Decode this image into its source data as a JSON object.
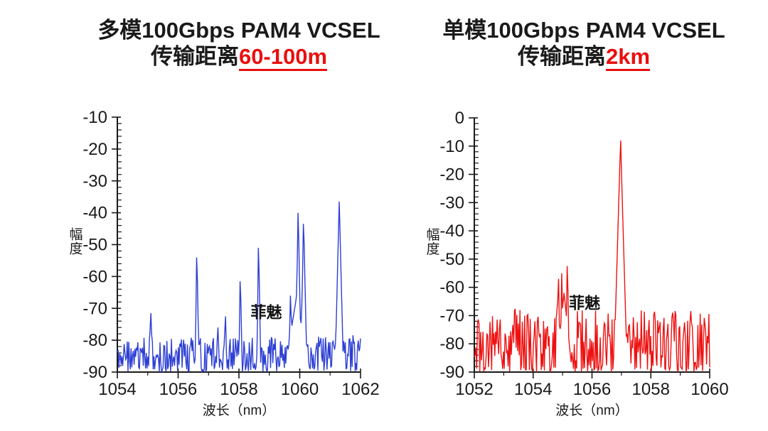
{
  "page": {
    "background": "#ffffff",
    "text_color": "#1a1a1a",
    "axis_color": "#1a1a1a"
  },
  "chart_data": [
    {
      "type": "line",
      "id": "multimode-vcsel-spectrum",
      "title": "多模100Gbps PAM4 VCSEL",
      "subtitle_prefix": "传输距离",
      "subtitle_highlight": "60-100m",
      "highlight_color": "#e8100e",
      "line_color": "#2d3fd3",
      "xlabel": "波长（nm）",
      "ylabel": "幅度",
      "xlim": [
        1054,
        1062
      ],
      "ylim": [
        -90,
        -10
      ],
      "x_ticks": [
        1054,
        1056,
        1058,
        1060,
        1062
      ],
      "x_minor_step": 1,
      "y_ticks": [
        -10,
        -20,
        -30,
        -40,
        -50,
        -60,
        -70,
        -80,
        -90
      ],
      "y_minor_step": 2,
      "grid": false,
      "legend": false,
      "noise_floor_db": [
        -90,
        -79
      ],
      "peaks": [
        {
          "wavelength_nm": 1055.1,
          "amplitude_db": -71.5,
          "width_nm": 0.16
        },
        {
          "wavelength_nm": 1056.62,
          "amplitude_db": -54.0,
          "width_nm": 0.14
        },
        {
          "wavelength_nm": 1057.3,
          "amplitude_db": -76.0,
          "width_nm": 0.1
        },
        {
          "wavelength_nm": 1057.55,
          "amplitude_db": -72.5,
          "width_nm": 0.12
        },
        {
          "wavelength_nm": 1058.05,
          "amplitude_db": -61.5,
          "width_nm": 0.12
        },
        {
          "wavelength_nm": 1058.65,
          "amplitude_db": -51.0,
          "width_nm": 0.14
        },
        {
          "wavelength_nm": 1059.9,
          "amplitude_db": -66.0,
          "width_nm": 0.8
        },
        {
          "wavelength_nm": 1059.7,
          "amplitude_db": -66.0,
          "width_nm": 0.14
        },
        {
          "wavelength_nm": 1059.95,
          "amplitude_db": -40.0,
          "width_nm": 0.2
        },
        {
          "wavelength_nm": 1060.13,
          "amplitude_db": -43.5,
          "width_nm": 0.22
        },
        {
          "wavelength_nm": 1061.3,
          "amplitude_db": -36.5,
          "width_nm": 0.28
        }
      ],
      "watermark": {
        "text": "菲魅",
        "wavelength_nm": 1058.9,
        "amplitude_db": -73
      }
    },
    {
      "type": "line",
      "id": "singlemode-vcsel-spectrum",
      "title": "单模100Gbps PAM4 VCSEL",
      "subtitle_prefix": "传输距离",
      "subtitle_highlight": "2km",
      "highlight_color": "#e8100e",
      "line_color": "#ee1111",
      "xlabel": "波长（nm）",
      "ylabel": "幅度",
      "xlim": [
        1052,
        1060
      ],
      "ylim": [
        -90,
        0
      ],
      "x_ticks": [
        1052,
        1054,
        1056,
        1058,
        1060
      ],
      "x_minor_step": 1,
      "y_ticks": [
        0,
        -10,
        -20,
        -30,
        -40,
        -50,
        -60,
        -70,
        -80,
        -90
      ],
      "y_minor_step": 2,
      "grid": false,
      "legend": false,
      "noise_floor_db": [
        -90,
        -68
      ],
      "peaks": [
        {
          "wavelength_nm": 1055.05,
          "amplitude_db": -62.0,
          "width_nm": 0.55
        },
        {
          "wavelength_nm": 1054.85,
          "amplitude_db": -57.0,
          "width_nm": 0.12
        },
        {
          "wavelength_nm": 1054.97,
          "amplitude_db": -55.0,
          "width_nm": 0.1
        },
        {
          "wavelength_nm": 1055.17,
          "amplitude_db": -52.5,
          "width_nm": 0.12
        },
        {
          "wavelength_nm": 1056.97,
          "amplitude_db": -8.0,
          "width_nm": 0.46
        }
      ],
      "watermark": {
        "text": "菲魅",
        "wavelength_nm": 1055.75,
        "amplitude_db": -67.5
      }
    }
  ]
}
